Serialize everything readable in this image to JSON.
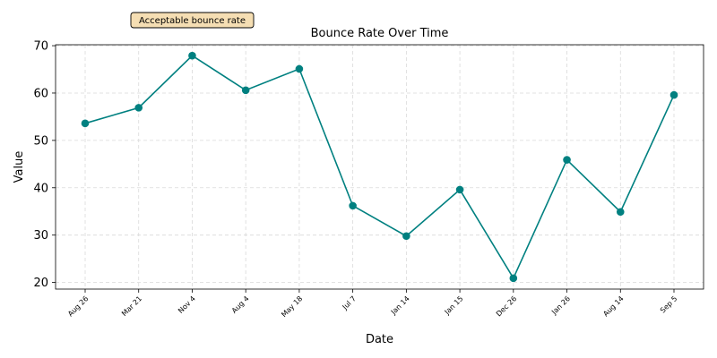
{
  "chart_data": {
    "type": "line",
    "title": "Bounce Rate Over Time",
    "xlabel": "Date",
    "ylabel": "Value",
    "categories": [
      "Aug 26",
      "Mar 21",
      "Nov 4",
      "Aug 4",
      "May 18",
      "Jul 7",
      "Jan 14",
      "Jan 15",
      "Dec 26",
      "Jan 26",
      "Aug 14",
      "Sep 5"
    ],
    "series": [
      {
        "values": [
          53.6,
          56.9,
          67.9,
          60.6,
          65.1,
          36.2,
          29.8,
          39.6,
          20.9,
          45.9,
          34.9,
          59.6
        ]
      }
    ],
    "yticks": [
      20,
      30,
      40,
      50,
      60,
      70
    ],
    "ylim": [
      18.6,
      70.2
    ],
    "grid": true,
    "line_color": "#008080",
    "annotation": {
      "text": "Acceptable bounce rate",
      "background": "#f5deb3",
      "border": "#000000"
    }
  }
}
